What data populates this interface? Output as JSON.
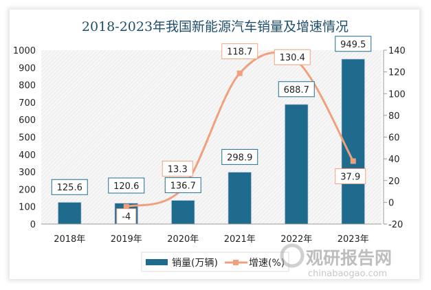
{
  "chart_data": {
    "type": "bar+line",
    "title": "2018-2023年我国新能源汽车销量及增速情况",
    "categories": [
      "2018年",
      "2019年",
      "2020年",
      "2021年",
      "2022年",
      "2023年"
    ],
    "series": [
      {
        "name": "销量(万辆)",
        "type": "bar",
        "axis": "left",
        "values": [
          125.6,
          120.6,
          136.7,
          298.9,
          688.7,
          949.5
        ],
        "labels": [
          "125.6",
          "120.6",
          "136.7",
          "298.9",
          "688.7",
          "949.5"
        ],
        "color": "#1f6b8e"
      },
      {
        "name": "增速(%)",
        "type": "line",
        "axis": "right",
        "values": [
          null,
          -4,
          13.3,
          118.7,
          130.4,
          37.9
        ],
        "labels": [
          "",
          "-4",
          "13.3",
          "118.7",
          "130.4",
          "37.9"
        ],
        "color": "#f0a07c"
      }
    ],
    "left_axis": {
      "ylim": [
        0,
        1000
      ],
      "ticks": [
        "0",
        "100",
        "200",
        "300",
        "400",
        "500",
        "600",
        "700",
        "800",
        "900",
        "1000"
      ]
    },
    "right_axis": {
      "ylim": [
        -20,
        140
      ],
      "ticks": [
        "-20",
        "0",
        "20",
        "40",
        "60",
        "80",
        "100",
        "120",
        "140"
      ]
    },
    "legend_placement": "bottom",
    "grid": false
  },
  "watermark": {
    "brand": "观研报告网",
    "url": "chinabaogao.com"
  }
}
